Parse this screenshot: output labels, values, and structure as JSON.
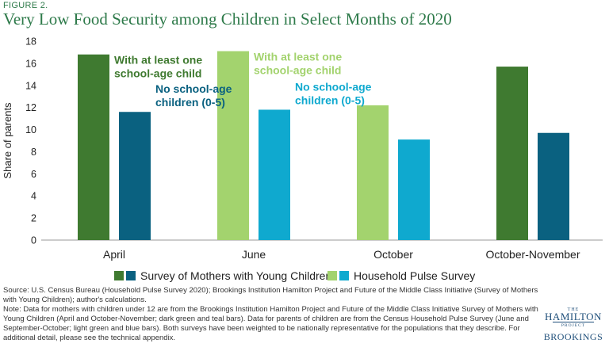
{
  "figure_label": "FIGURE 2.",
  "title": "Very Low Food Security among Children in Select Months of 2020",
  "chart_data": {
    "type": "bar",
    "categories": [
      "April",
      "June",
      "October",
      "October-November"
    ],
    "series": [
      {
        "name": "With at least one school-age child",
        "values": [
          16.8,
          17.1,
          12.2,
          15.7
        ]
      },
      {
        "name": "No school-age children (0-5)",
        "values": [
          11.6,
          11.8,
          9.1,
          9.7
        ]
      }
    ],
    "survey_by_category": [
      "mothers",
      "pulse",
      "pulse",
      "mothers"
    ],
    "colors": {
      "mothers": [
        "#3f7a30",
        "#0a6180"
      ],
      "pulse": [
        "#a3d36e",
        "#0fa9cf"
      ]
    },
    "ylabel": "Share of parents",
    "ylim": [
      0,
      18
    ],
    "yticks": [
      0,
      2,
      4,
      6,
      8,
      10,
      12,
      14,
      16,
      18
    ],
    "annotations": [
      {
        "category": "April",
        "series": 0,
        "lines": [
          "With at least one",
          "school-age child"
        ],
        "color": "#3f7a30"
      },
      {
        "category": "April",
        "series": 1,
        "lines": [
          "No school-age",
          "children (0-5)"
        ],
        "color": "#0a6180"
      },
      {
        "category": "June",
        "series": 0,
        "lines": [
          "With at least one",
          "school-age child"
        ],
        "color": "#a3d36e"
      },
      {
        "category": "June",
        "series": 1,
        "lines": [
          "No school-age",
          "children (0-5)"
        ],
        "color": "#0fa9cf"
      }
    ],
    "legend": [
      {
        "label": "Survey of Mothers with Young Children",
        "colors": [
          "#3f7a30",
          "#0a6180"
        ]
      },
      {
        "label": "Household Pulse Survey",
        "colors": [
          "#a3d36e",
          "#0fa9cf"
        ]
      }
    ],
    "legend_position": "bottom",
    "grid": false
  },
  "source": [
    "Source: U.S. Census Bureau (Household Pulse Survey 2020); Brookings Institution Hamilton Project and Future of the Middle Class Initiative (Survey of Mothers with Young Children); author's calculations.",
    "Note: Data for mothers with children under 12 are from the Brookings Institution Hamilton Project and Future of the Middle Class Initiative Survey of Mothers with Young Children (April and October-November; dark green and teal bars). Data for parents of children are from the Census Household Pulse Survey (June and September-October; light green and blue bars). Both surveys have been weighted to be nationally representative for the populations that they describe. For additional detail, please see the technical appendix."
  ],
  "logo": {
    "the": "THE",
    "hamilton": "HAMILTON",
    "project": "PROJECT",
    "brookings": "BROOKINGS"
  }
}
